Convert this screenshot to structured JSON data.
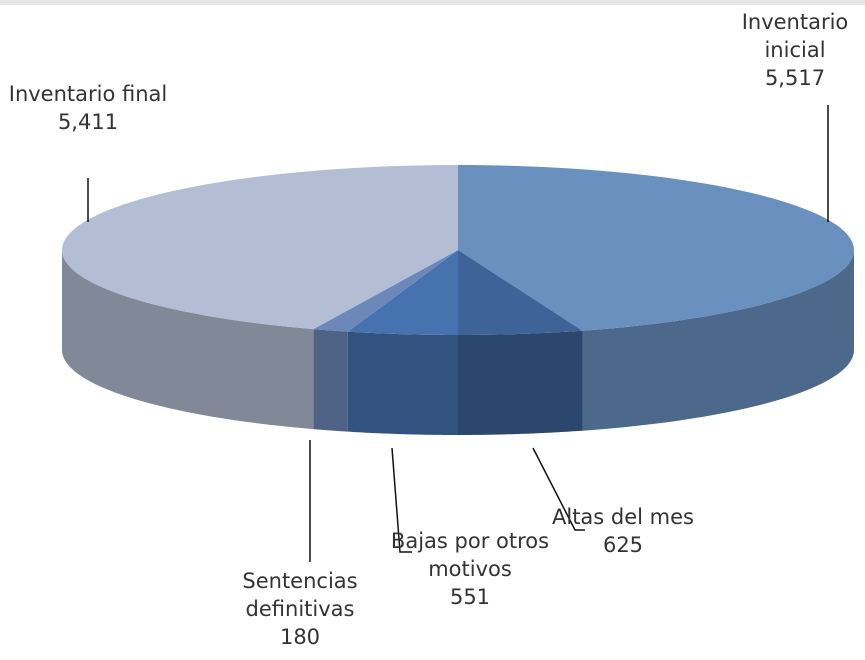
{
  "chart_data": {
    "type": "pie",
    "categories": [
      "Inventario inicial",
      "Altas del mes",
      "Bajas por otros motivos",
      "Sentencias definitivas",
      "Inventario final"
    ],
    "values": [
      5517,
      625,
      551,
      180,
      5411
    ],
    "value_labels": [
      "5,517",
      "625",
      "551",
      "180",
      "5,411"
    ],
    "colors": [
      "#6a90bf",
      "#3d6399",
      "#4673b0",
      "#6c88b9",
      "#b3bdd3"
    ]
  }
}
